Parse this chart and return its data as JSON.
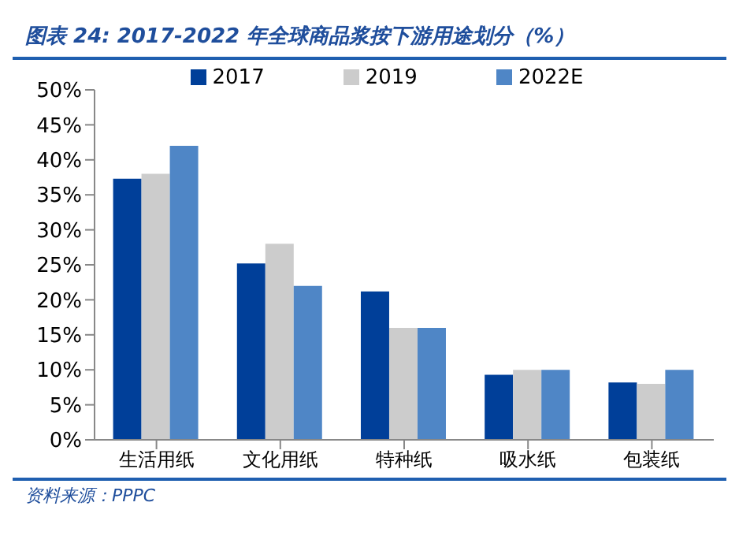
{
  "chart_data": {
    "type": "bar",
    "title": "图表 24:  2017-2022 年全球商品浆按下游用途划分（%）",
    "categories": [
      "生活用纸",
      "文化用纸",
      "特种纸",
      "吸水纸",
      "包装纸"
    ],
    "series": [
      {
        "name": "2017",
        "color": "#003f99",
        "values": [
          37.3,
          25.2,
          21.2,
          9.3,
          8.2
        ]
      },
      {
        "name": "2019",
        "color": "#cccccc",
        "values": [
          38,
          28,
          16,
          10,
          8
        ]
      },
      {
        "name": "2022E",
        "color": "#4f86c6",
        "values": [
          42,
          22,
          16,
          10,
          10
        ]
      }
    ],
    "ylim": [
      0,
      50
    ],
    "yticks": [
      {
        "value": 0,
        "label": "0%"
      },
      {
        "value": 5,
        "label": "5%"
      },
      {
        "value": 10,
        "label": "10%"
      },
      {
        "value": 15,
        "label": "15%"
      },
      {
        "value": 20,
        "label": "20%"
      },
      {
        "value": 25,
        "label": "25%"
      },
      {
        "value": 30,
        "label": "30%"
      },
      {
        "value": 35,
        "label": "35%"
      },
      {
        "value": 40,
        "label": "40%"
      },
      {
        "value": 45,
        "label": "45%"
      },
      {
        "value": 50,
        "label": "50%"
      }
    ],
    "grid": false,
    "legend": "top",
    "annotations": [
      "资料来源：PPPC"
    ]
  }
}
